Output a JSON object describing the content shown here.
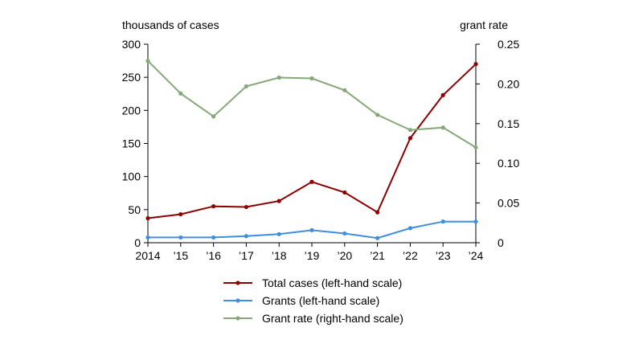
{
  "chart_data": {
    "type": "line",
    "categories": [
      "2014",
      "’15",
      "’16",
      "’17",
      "’18",
      "’19",
      "’20",
      "’21",
      "’22",
      "’23",
      "’24"
    ],
    "left_axis": {
      "title": "thousands of cases",
      "range": [
        0,
        300
      ],
      "ticks": [
        "0",
        "50",
        "100",
        "150",
        "200",
        "250",
        "300"
      ]
    },
    "right_axis": {
      "title": "grant rate",
      "range": [
        0,
        0.25
      ],
      "ticks": [
        "0",
        "0.05",
        "0.10",
        "0.15",
        "0.20",
        "0.25"
      ]
    },
    "series": [
      {
        "name": "Total cases (left-hand scale)",
        "axis": "left",
        "color": "#8b0000",
        "values": [
          37,
          43,
          55,
          54,
          63,
          92,
          76,
          46,
          158,
          223,
          270
        ]
      },
      {
        "name": "Grants (left-hand scale)",
        "axis": "left",
        "color": "#3f8fe0",
        "values": [
          8,
          8,
          8,
          10,
          13,
          19,
          14,
          7,
          22,
          32,
          32
        ]
      },
      {
        "name": "Grant rate (right-hand scale)",
        "axis": "right",
        "color": "#87a878",
        "values": [
          0.229,
          0.188,
          0.159,
          0.197,
          0.208,
          0.207,
          0.192,
          0.161,
          0.142,
          0.145,
          0.12
        ]
      }
    ],
    "legend": "bottom-center"
  }
}
